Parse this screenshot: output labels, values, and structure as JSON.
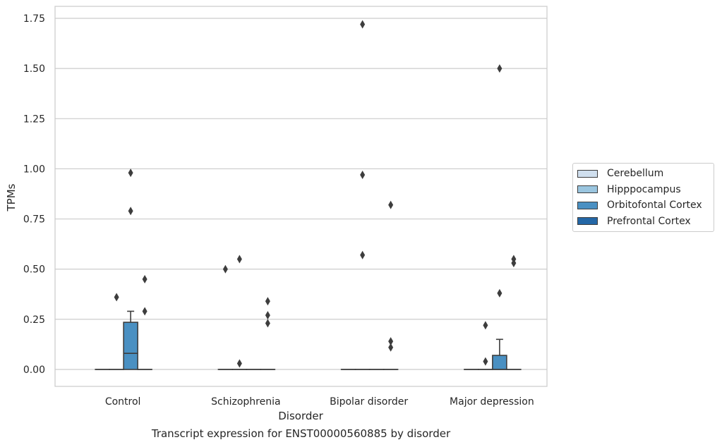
{
  "caption": "Transcript expression for ENST00000560885 by disorder",
  "chart_data": {
    "type": "box",
    "title": "",
    "xlabel": "Disorder",
    "ylabel": "TPMs",
    "ylim": [
      -0.085,
      1.81
    ],
    "yticks": [
      0.0,
      0.25,
      0.5,
      0.75,
      1.0,
      1.25,
      1.5,
      1.75
    ],
    "ytick_labels": [
      "0.00",
      "0.25",
      "0.50",
      "0.75",
      "1.00",
      "1.25",
      "1.50",
      "1.75"
    ],
    "grid": "horizontal",
    "legend_position": "outside-right",
    "categories": [
      "Control",
      "Schizophrenia",
      "Bipolar disorder",
      "Major depression"
    ],
    "series": [
      {
        "name": "Cerebellum",
        "color": "#d0dfee",
        "boxes": [
          {
            "q1": 0,
            "median": 0,
            "q3": 0,
            "whisker_low": 0,
            "whisker_high": 0,
            "outliers": []
          },
          {
            "q1": 0,
            "median": 0,
            "q3": 0,
            "whisker_low": 0,
            "whisker_high": 0,
            "outliers": [
              0.5
            ]
          },
          {
            "q1": 0,
            "median": 0,
            "q3": 0,
            "whisker_low": 0,
            "whisker_high": 0,
            "outliers": []
          },
          {
            "q1": 0,
            "median": 0,
            "q3": 0,
            "whisker_low": 0,
            "whisker_high": 0,
            "outliers": []
          }
        ]
      },
      {
        "name": "Hipppocampus",
        "color": "#9ac5df",
        "boxes": [
          {
            "q1": 0,
            "median": 0,
            "q3": 0,
            "whisker_low": 0,
            "whisker_high": 0,
            "outliers": [
              0.36
            ]
          },
          {
            "q1": 0,
            "median": 0,
            "q3": 0,
            "whisker_low": 0,
            "whisker_high": 0,
            "outliers": [
              0.55,
              0.03
            ]
          },
          {
            "q1": 0,
            "median": 0,
            "q3": 0,
            "whisker_low": 0,
            "whisker_high": 0,
            "outliers": [
              1.72,
              0.97,
              0.57
            ]
          },
          {
            "q1": 0,
            "median": 0,
            "q3": 0,
            "whisker_low": 0,
            "whisker_high": 0,
            "outliers": [
              0.22,
              0.04
            ]
          }
        ]
      },
      {
        "name": "Orbitofontal Cortex",
        "color": "#4a90c2",
        "boxes": [
          {
            "q1": 0,
            "median": 0.08,
            "q3": 0.235,
            "whisker_low": 0,
            "whisker_high": 0.29,
            "outliers": [
              0.98,
              0.79
            ]
          },
          {
            "q1": 0,
            "median": 0,
            "q3": 0,
            "whisker_low": 0,
            "whisker_high": 0,
            "outliers": []
          },
          {
            "q1": 0,
            "median": 0,
            "q3": 0,
            "whisker_low": 0,
            "whisker_high": 0,
            "outliers": []
          },
          {
            "q1": 0,
            "median": 0,
            "q3": 0.07,
            "whisker_low": 0,
            "whisker_high": 0.15,
            "outliers": [
              1.5,
              0.38
            ]
          }
        ]
      },
      {
        "name": "Prefrontal Cortex",
        "color": "#2467a6",
        "boxes": [
          {
            "q1": 0,
            "median": 0,
            "q3": 0,
            "whisker_low": 0,
            "whisker_high": 0,
            "outliers": [
              0.45,
              0.29
            ]
          },
          {
            "q1": 0,
            "median": 0,
            "q3": 0,
            "whisker_low": 0,
            "whisker_high": 0,
            "outliers": [
              0.34,
              0.27,
              0.23
            ]
          },
          {
            "q1": 0,
            "median": 0,
            "q3": 0,
            "whisker_low": 0,
            "whisker_high": 0,
            "outliers": [
              0.82,
              0.14,
              0.11
            ]
          },
          {
            "q1": 0,
            "median": 0,
            "q3": 0,
            "whisker_low": 0,
            "whisker_high": 0,
            "outliers": [
              0.55,
              0.53
            ]
          }
        ]
      }
    ]
  }
}
